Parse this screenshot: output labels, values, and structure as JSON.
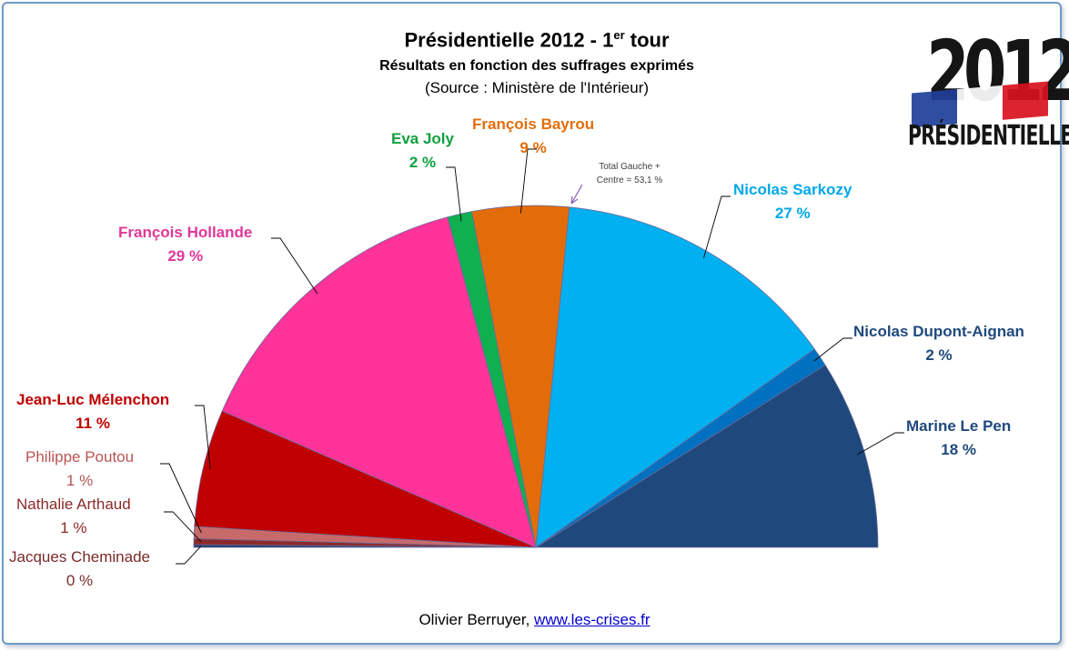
{
  "header": {
    "title_main": "Présidentielle  2012 - 1",
    "title_sup": "er",
    "title_tail": " tour",
    "subtitle": "Résultats en fonction des suffrages exprimés",
    "source": "(Source : Ministère de l'Intérieur)"
  },
  "logo": {
    "year": "2012",
    "word": "PRÉSIDENTIELLE",
    "flag_colors": [
      "#1f3f9a",
      "#ffffff",
      "#d8121f"
    ]
  },
  "annotation": {
    "line1": "Total Gauche +",
    "line2": "Centre = 53,1 %"
  },
  "footer": {
    "author": "Olivier Berruyer,",
    "link": "www.les-crises.fr"
  },
  "chart_data": {
    "type": "pie",
    "variant": "half-donut (hemicycle)",
    "title": "Présidentielle  2012 - 1er tour",
    "subtitle": "Résultats en fonction des suffrages exprimés",
    "order": "left to right",
    "slices": [
      {
        "name": "Jacques Cheminade",
        "value": 0.25,
        "label": "0 %",
        "color": "#1f3a6b",
        "text_color": "#7a2a2a"
      },
      {
        "name": "Nathalie Arthaud",
        "value": 0.56,
        "label": "1 %",
        "color": "#8c2a2a",
        "text_color": "#8c2a2a"
      },
      {
        "name": "Philippe Poutou",
        "value": 1.15,
        "label": "1 %",
        "color": "#c86a6a",
        "text_color": "#b85454"
      },
      {
        "name": "Jean-Luc Mélenchon",
        "value": 11.1,
        "label": "11 %",
        "color": "#c00000",
        "text_color": "#c00000"
      },
      {
        "name": "François Hollande",
        "value": 28.63,
        "label": "29 %",
        "color": "#ff3399",
        "text_color": "#e0389a"
      },
      {
        "name": "Eva Joly",
        "value": 2.31,
        "label": "2 %",
        "color": "#10b050",
        "text_color": "#10a040"
      },
      {
        "name": "François Bayrou",
        "value": 9.13,
        "label": "9 %",
        "color": "#e36c0a",
        "text_color": "#e36c0a"
      },
      {
        "name": "Nicolas Sarkozy",
        "value": 27.18,
        "label": "27 %",
        "color": "#00b0f0",
        "text_color": "#00a8e8"
      },
      {
        "name": "Nicolas Dupont-Aignan",
        "value": 1.79,
        "label": "2 %",
        "color": "#0070c0",
        "text_color": "#1f497d"
      },
      {
        "name": "Marine Le Pen",
        "value": 17.9,
        "label": "18 %",
        "color": "#1f497d",
        "text_color": "#1f497d"
      }
    ]
  }
}
